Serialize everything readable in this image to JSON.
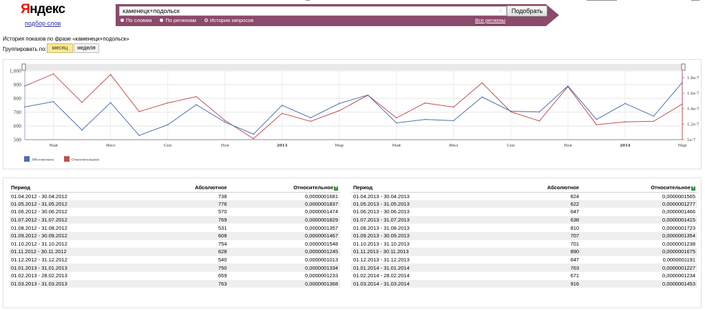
{
  "logo": {
    "brand": "Яндекс",
    "service": "подбор слов"
  },
  "search": {
    "query": "каменецк+подольск",
    "submit_label": "Подобрать",
    "modes": [
      {
        "label": "По словам",
        "selected": false
      },
      {
        "label": "По регионам",
        "selected": false
      },
      {
        "label": "История запросов",
        "selected": true
      }
    ],
    "regions_link": "Все регионы",
    "bar_color": "#8c4a6c"
  },
  "page": {
    "title": "История показов по фразе «каменецк+подольск»",
    "group_label": "Группировать по:",
    "group_month": "месяц",
    "group_week": "неделя"
  },
  "chart_data": {
    "type": "line",
    "x_tick_labels": [
      "Май",
      "Июл",
      "Сен",
      "Ноя",
      "2013",
      "Мар",
      "Май",
      "Июл",
      "Сен",
      "Ноя",
      "2014",
      "Мар"
    ],
    "y_left_ticks": [
      "1,000",
      "900",
      "800",
      "700",
      "600",
      "500"
    ],
    "y_right_ticks": [
      "1.8e-7",
      "1.6e-7",
      "1.4e-7",
      "1.2e-7",
      "1e-7"
    ],
    "ylim_left": [
      500,
      1000
    ],
    "ylim_right": [
      1e-07,
      1.875e-07
    ],
    "series": [
      {
        "name": "Абсолютное",
        "color": "#4a6fb0",
        "axis": "left",
        "values": [
          738,
          776,
          570,
          769,
          531,
          608,
          754,
          628,
          540,
          750,
          659,
          763,
          824,
          622,
          647,
          638,
          810,
          707,
          701,
          890,
          647,
          763,
          671,
          916
        ]
      },
      {
        "name": "Относительное",
        "color": "#c0504d",
        "axis": "right",
        "values": [
          1.681e-07,
          1.837e-07,
          1.474e-07,
          1.829e-07,
          1.357e-07,
          1.467e-07,
          1.548e-07,
          1.245e-07,
          1.013e-07,
          1.334e-07,
          1.233e-07,
          1.368e-07,
          1.565e-07,
          1.277e-07,
          1.466e-07,
          1.415e-07,
          1.723e-07,
          1.354e-07,
          1.238e-07,
          1.675e-07,
          1.191e-07,
          1.227e-07,
          1.234e-07,
          1.453e-07
        ]
      }
    ],
    "grid": true,
    "legend_position": "bottom-left"
  },
  "table": {
    "col_period": "Период",
    "col_absolute": "Абсолютное",
    "col_relative": "Относительное",
    "left_rows": [
      {
        "period": "01.04.2012 - 30.04.2012",
        "absolute": "738",
        "relative": "0,0000001681"
      },
      {
        "period": "01.05.2012 - 31.05.2012",
        "absolute": "776",
        "relative": "0,0000001837"
      },
      {
        "period": "01.06.2012 - 30.06.2012",
        "absolute": "570",
        "relative": "0,0000001474"
      },
      {
        "period": "01.07.2012 - 31.07.2012",
        "absolute": "769",
        "relative": "0,0000001829"
      },
      {
        "period": "01.08.2012 - 31.08.2012",
        "absolute": "531",
        "relative": "0,0000001357"
      },
      {
        "period": "01.09.2012 - 30.09.2012",
        "absolute": "608",
        "relative": "0,0000001467"
      },
      {
        "period": "01.10.2012 - 31.10.2012",
        "absolute": "754",
        "relative": "0,0000001548"
      },
      {
        "period": "01.11.2012 - 30.11.2012",
        "absolute": "628",
        "relative": "0,0000001245"
      },
      {
        "period": "01.12.2012 - 31.12.2012",
        "absolute": "540",
        "relative": "0,0000001013"
      },
      {
        "period": "01.01.2013 - 31.01.2013",
        "absolute": "750",
        "relative": "0,0000001334"
      },
      {
        "period": "01.02.2013 - 28.02.2013",
        "absolute": "659",
        "relative": "0,0000001233"
      },
      {
        "period": "01.03.2013 - 31.03.2013",
        "absolute": "763",
        "relative": "0,0000001368"
      }
    ],
    "right_rows": [
      {
        "period": "01.04.2013 - 30.04.2013",
        "absolute": "824",
        "relative": "0,0000001565"
      },
      {
        "period": "01.05.2013 - 31.05.2013",
        "absolute": "622",
        "relative": "0,0000001277"
      },
      {
        "period": "01.06.2013 - 30.06.2013",
        "absolute": "647",
        "relative": "0,0000001466"
      },
      {
        "period": "01.07.2013 - 31.07.2013",
        "absolute": "638",
        "relative": "0,0000001415"
      },
      {
        "period": "01.08.2013 - 31.08.2013",
        "absolute": "810",
        "relative": "0,0000001723"
      },
      {
        "period": "01.09.2013 - 30.09.2013",
        "absolute": "707",
        "relative": "0,0000001354"
      },
      {
        "period": "01.10.2013 - 31.10.2013",
        "absolute": "701",
        "relative": "0,0000001238"
      },
      {
        "period": "01.11.2013 - 30.11.2013",
        "absolute": "890",
        "relative": "0,0000001675"
      },
      {
        "period": "01.12.2013 - 31.12.2013",
        "absolute": "647",
        "relative": "0,0000001191"
      },
      {
        "period": "01.01.2014 - 31.01.2014",
        "absolute": "763",
        "relative": "0,0000001227"
      },
      {
        "period": "01.02.2014 - 28.02.2014",
        "absolute": "671",
        "relative": "0,0000001234"
      },
      {
        "period": "01.03.2014 - 31.03.2014",
        "absolute": "916",
        "relative": "0,0000001453"
      }
    ]
  }
}
